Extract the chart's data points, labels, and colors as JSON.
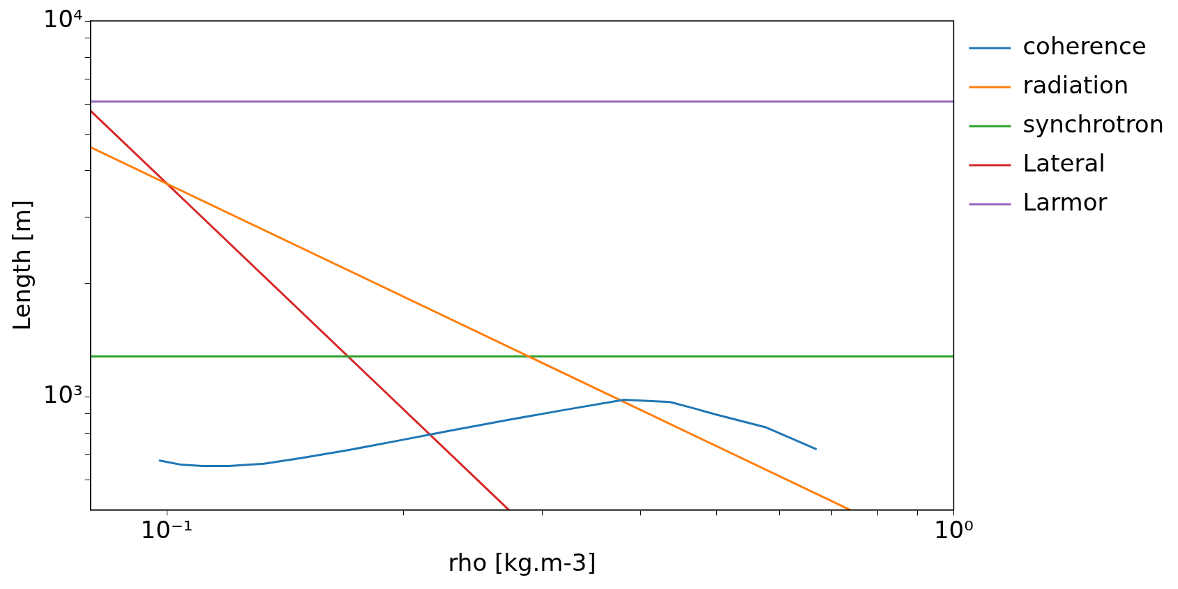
{
  "chart_data": {
    "type": "line",
    "xlabel": "rho [kg.m-3]",
    "ylabel": "Length [m]",
    "log": "xy",
    "grid": false,
    "legend": "top right",
    "marker": "none",
    "line_style": "solid",
    "xlim": [
      0.08,
      1
    ],
    "ylim": [
      500,
      10000
    ],
    "xticks": [
      {
        "value": 0.1,
        "label": "10⁻¹"
      },
      {
        "value": 0.2,
        "label": null
      },
      {
        "value": 0.3,
        "label": null
      },
      {
        "value": 0.4,
        "label": null
      },
      {
        "value": 0.5,
        "label": null
      },
      {
        "value": 0.6,
        "label": null
      },
      {
        "value": 0.7,
        "label": null
      },
      {
        "value": 0.8,
        "label": null
      },
      {
        "value": 0.9,
        "label": null
      },
      {
        "value": 1,
        "label": "10⁰"
      }
    ],
    "yticks": [
      {
        "value": 600,
        "label": null
      },
      {
        "value": 700,
        "label": null
      },
      {
        "value": 800,
        "label": null
      },
      {
        "value": 900,
        "label": null
      },
      {
        "value": 1000,
        "label": "10³"
      },
      {
        "value": 2000,
        "label": null
      },
      {
        "value": 3000,
        "label": null
      },
      {
        "value": 4000,
        "label": null
      },
      {
        "value": 5000,
        "label": null
      },
      {
        "value": 6000,
        "label": null
      },
      {
        "value": 7000,
        "label": null
      },
      {
        "value": 8000,
        "label": null
      },
      {
        "value": 9000,
        "label": null
      },
      {
        "value": 10000,
        "label": "10⁴"
      }
    ],
    "series": [
      {
        "name": "coherence",
        "color": "#1f77b4",
        "x": [
          0.098,
          0.104,
          0.111,
          0.12,
          0.133,
          0.148,
          0.169,
          0.197,
          0.227,
          0.272,
          0.321,
          0.381,
          0.436,
          0.467,
          0.498,
          0.578,
          0.668
        ],
        "values": [
          676,
          660,
          654,
          654,
          663,
          686,
          719,
          764,
          809,
          868,
          923,
          981,
          968,
          932,
          897,
          828,
          726
        ]
      },
      {
        "name": "radiation",
        "color": "#ff7f0e",
        "x": [
          0.08,
          0.738
        ],
        "values": [
          4612,
          500
        ]
      },
      {
        "name": "synchrotron",
        "color": "#2ca02c",
        "x": [
          0.08,
          1
        ],
        "values": [
          1280,
          1280
        ]
      },
      {
        "name": "Lateral",
        "color": "#d62728",
        "x": [
          0.08,
          0.272
        ],
        "values": [
          5770,
          500
        ]
      },
      {
        "name": "Larmor",
        "color": "#9467bd",
        "x": [
          0.08,
          1
        ],
        "values": [
          6100,
          6100
        ]
      }
    ]
  }
}
